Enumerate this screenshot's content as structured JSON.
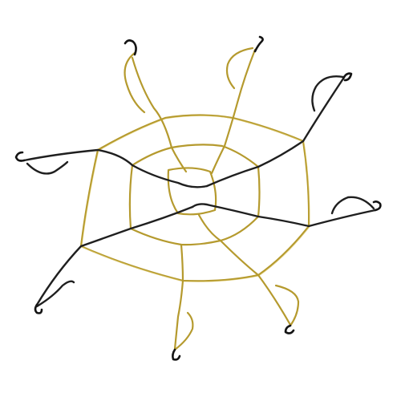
{
  "image": {
    "subject": "cargo-net",
    "palette": {
      "background": "#ffffff",
      "yellow_cord": "#b59a2e",
      "yellow_highlight": "#e3cf72",
      "black_cord": "#1f1f1f",
      "hook": "#141414"
    },
    "hook_count": 8,
    "ring_count": 2
  }
}
